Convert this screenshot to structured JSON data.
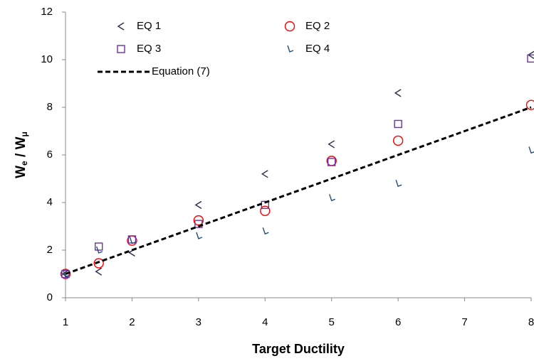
{
  "chart_data": {
    "type": "scatter",
    "x_label": "Target Ductility",
    "y_label": [
      "W",
      "e",
      " / W",
      "μ"
    ],
    "xlim": [
      1,
      8
    ],
    "xticks": [
      1,
      2,
      3,
      4,
      5,
      6,
      7,
      8
    ],
    "ylim": [
      0,
      12
    ],
    "yticks": [
      0,
      2,
      4,
      6,
      8,
      10,
      12
    ],
    "grid": false,
    "legend": "top",
    "series": [
      {
        "name": "EQ 1",
        "color": "#2b2b4b",
        "marker": "chevron",
        "x": [
          1,
          1.5,
          2,
          3,
          4,
          5,
          6,
          8
        ],
        "values": [
          1.0,
          1.1,
          1.9,
          3.9,
          5.2,
          6.45,
          8.6,
          10.2
        ]
      },
      {
        "name": "EQ 2",
        "color": "#ff0000",
        "marker": "circle",
        "x": [
          1,
          1.5,
          2,
          3,
          4,
          5,
          6,
          8
        ],
        "values": [
          1.0,
          1.45,
          2.4,
          3.25,
          3.65,
          5.75,
          6.6,
          8.1
        ]
      },
      {
        "name": "EQ 3",
        "color": "#7030a0",
        "marker": "square",
        "x": [
          1,
          1.5,
          2,
          3,
          4,
          5,
          6,
          8
        ],
        "values": [
          1.0,
          2.15,
          2.45,
          3.1,
          3.9,
          5.7,
          7.3,
          10.05
        ]
      },
      {
        "name": "EQ 4",
        "color": "#1f4e79",
        "marker": "tick",
        "x": [
          1,
          1.5,
          2,
          3,
          4,
          5,
          6,
          8
        ],
        "values": [
          1.0,
          2.0,
          2.4,
          2.6,
          2.8,
          4.2,
          4.8,
          6.2
        ]
      },
      {
        "name": "Equation (7)",
        "color": "#000000",
        "marker": "dashed-line",
        "x": [
          1,
          8
        ],
        "values": [
          1,
          8
        ]
      }
    ]
  }
}
